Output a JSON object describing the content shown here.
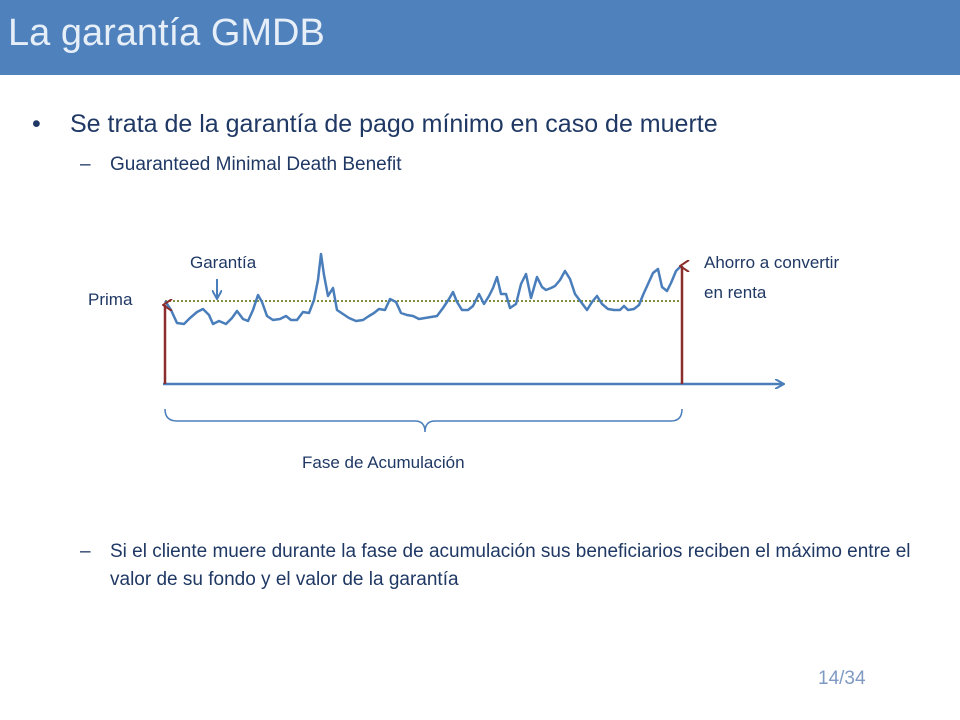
{
  "slide": {
    "title": "La garantía GMDB",
    "page_number": "14/34"
  },
  "content": {
    "bullet_mark": "•",
    "dash_mark": "–",
    "bullet_main": "Se trata de la garantía de pago mínimo en caso de muerte",
    "sub_bullet_1": "Guaranteed Minimal Death Benefit",
    "sub_bullet_2": "Si el cliente muere durante la fase de acumulación sus beneficiarios reciben el máximo entre el valor de su fondo y el valor de la garantía"
  },
  "diagram": {
    "label_prima": "Prima",
    "label_garantia": "Garantía",
    "label_ahorro_line1": "Ahorro a convertir",
    "label_ahorro_line2": "en renta",
    "label_fase": "Fase de Acumulación",
    "colors": {
      "fund_line": "#4a7ebb",
      "guarantee_line": "#7f8f3a",
      "vertical_arrows": "#8b2d2d",
      "axis": "#4a7ebb",
      "brace": "#4a7ebb"
    }
  }
}
